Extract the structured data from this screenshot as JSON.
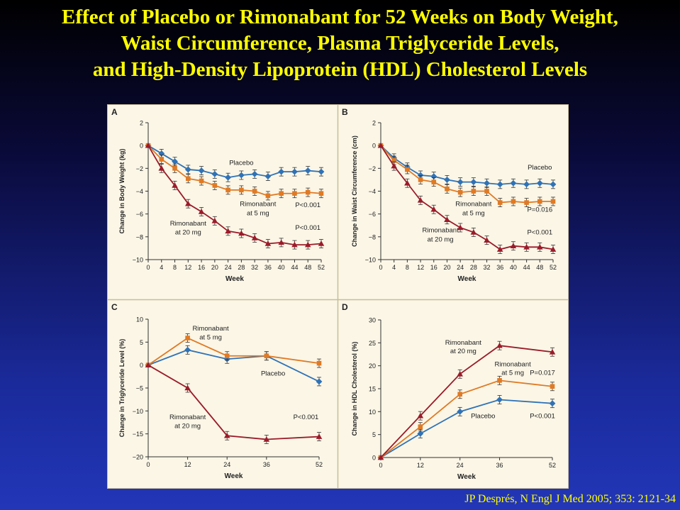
{
  "title_lines": [
    "Effect of Placebo or Rimonabant for 52 Weeks on Body Weight,",
    "Waist Circumference, Plasma Triglyceride Levels,",
    "and High-Density Lipoprotein (HDL) Cholesterol Levels"
  ],
  "citation": "JP Després, N Engl J Med 2005; 353: 2121-34",
  "colors": {
    "placebo": "#2f72b6",
    "rim5": "#e07a24",
    "rim20": "#9b1b2a",
    "title": "#ffff00"
  },
  "chart_data": [
    {
      "panel": "A",
      "type": "line",
      "ylabel": "Change in Body Weight (kg)",
      "xlabel": "Week",
      "ylim": [
        -10,
        2
      ],
      "yticks": [
        2,
        0,
        -2,
        -4,
        -6,
        -8,
        -10
      ],
      "xlim": [
        0,
        52
      ],
      "xticks": [
        0,
        4,
        8,
        12,
        16,
        20,
        24,
        28,
        32,
        36,
        40,
        44,
        48,
        52
      ],
      "x": [
        0,
        4,
        8,
        12,
        16,
        20,
        24,
        28,
        32,
        36,
        40,
        44,
        48,
        52
      ],
      "series": [
        {
          "name": "Placebo",
          "key": "placebo",
          "marker": "diamond",
          "values": [
            0,
            -0.7,
            -1.4,
            -2.1,
            -2.2,
            -2.5,
            -2.8,
            -2.6,
            -2.5,
            -2.7,
            -2.3,
            -2.3,
            -2.2,
            -2.3
          ]
        },
        {
          "name": "Rimonabant at 5 mg",
          "key": "rim5",
          "marker": "square",
          "values": [
            0,
            -1.2,
            -2.0,
            -2.9,
            -3.1,
            -3.5,
            -3.9,
            -3.9,
            -4.0,
            -4.4,
            -4.2,
            -4.2,
            -4.1,
            -4.2
          ]
        },
        {
          "name": "Rimonabant at 20 mg",
          "key": "rim20",
          "marker": "triangle",
          "values": [
            0,
            -2.0,
            -3.5,
            -5.1,
            -5.8,
            -6.6,
            -7.5,
            -7.7,
            -8.1,
            -8.6,
            -8.5,
            -8.7,
            -8.7,
            -8.6
          ]
        }
      ],
      "annotations": [
        {
          "text": "Placebo",
          "x": 28,
          "y": -1.7
        },
        {
          "text": "Rimonabant",
          "x": 33,
          "y": -5.3
        },
        {
          "text": "at 5 mg",
          "x": 33,
          "y": -6.1
        },
        {
          "text": "P<0.001",
          "x": 48,
          "y": -5.4
        },
        {
          "text": "Rimonabant",
          "x": 12,
          "y": -7.0
        },
        {
          "text": "at 20 mg",
          "x": 12,
          "y": -7.8
        },
        {
          "text": "P<0.001",
          "x": 48,
          "y": -7.4
        }
      ]
    },
    {
      "panel": "B",
      "type": "line",
      "ylabel": "Change in Waist Circumference (cm)",
      "xlabel": "Week",
      "ylim": [
        -10,
        2
      ],
      "yticks": [
        2,
        0,
        -2,
        -4,
        -6,
        -8,
        -10
      ],
      "xlim": [
        0,
        52
      ],
      "xticks": [
        0,
        4,
        8,
        12,
        16,
        20,
        24,
        28,
        32,
        36,
        40,
        44,
        48,
        52
      ],
      "x": [
        0,
        4,
        8,
        12,
        16,
        20,
        24,
        28,
        32,
        36,
        40,
        44,
        48,
        52
      ],
      "series": [
        {
          "name": "Placebo",
          "key": "placebo",
          "marker": "diamond",
          "values": [
            0,
            -1.1,
            -1.9,
            -2.6,
            -2.7,
            -3.0,
            -3.2,
            -3.2,
            -3.3,
            -3.4,
            -3.3,
            -3.4,
            -3.3,
            -3.4
          ]
        },
        {
          "name": "Rimonabant at 5 mg",
          "key": "rim5",
          "marker": "square",
          "values": [
            0,
            -1.3,
            -2.1,
            -3.0,
            -3.2,
            -3.8,
            -4.1,
            -4.0,
            -4.0,
            -5.0,
            -4.9,
            -5.0,
            -4.9,
            -4.9
          ]
        },
        {
          "name": "Rimonabant at 20 mg",
          "key": "rim20",
          "marker": "triangle",
          "values": [
            0,
            -1.8,
            -3.3,
            -4.8,
            -5.6,
            -6.5,
            -7.2,
            -7.6,
            -8.3,
            -9.1,
            -8.8,
            -8.9,
            -8.9,
            -9.1
          ]
        }
      ],
      "annotations": [
        {
          "text": "Placebo",
          "x": 48,
          "y": -2.1
        },
        {
          "text": "Rimonabant",
          "x": 28,
          "y": -5.3
        },
        {
          "text": "at 5 mg",
          "x": 28,
          "y": -6.1
        },
        {
          "text": "P=0.016",
          "x": 48,
          "y": -5.8
        },
        {
          "text": "Rimonabant",
          "x": 18,
          "y": -7.6
        },
        {
          "text": "at 20 mg",
          "x": 18,
          "y": -8.4
        },
        {
          "text": "P<0.001",
          "x": 48,
          "y": -7.8
        }
      ]
    },
    {
      "panel": "C",
      "type": "line",
      "ylabel": "Change in Triglyceride Level (%)",
      "xlabel": "Week",
      "ylim": [
        -20,
        10
      ],
      "yticks": [
        10,
        5,
        0,
        -5,
        -10,
        -15,
        -20
      ],
      "xlim": [
        0,
        52
      ],
      "xticks": [
        0,
        12,
        24,
        36,
        52
      ],
      "x": [
        0,
        12,
        24,
        36,
        52
      ],
      "series": [
        {
          "name": "Placebo",
          "key": "placebo",
          "marker": "diamond",
          "values": [
            0,
            3.3,
            1.3,
            2.0,
            -3.6
          ]
        },
        {
          "name": "Rimonabant at 5 mg",
          "key": "rim5",
          "marker": "square",
          "values": [
            0,
            5.9,
            2.0,
            2.0,
            0.4
          ]
        },
        {
          "name": "Rimonabant at 20 mg",
          "key": "rim20",
          "marker": "triangle",
          "values": [
            0,
            -5.0,
            -15.4,
            -16.2,
            -15.6
          ]
        }
      ],
      "annotations": [
        {
          "text": "Rimonabant",
          "x": 19,
          "y": 7.5
        },
        {
          "text": "at 5 mg",
          "x": 19,
          "y": 5.6
        },
        {
          "text": "Placebo",
          "x": 38,
          "y": -2.3
        },
        {
          "text": "Rimonabant",
          "x": 12,
          "y": -11.8
        },
        {
          "text": "at 20 mg",
          "x": 12,
          "y": -13.7
        },
        {
          "text": "P<0.001",
          "x": 48,
          "y": -11.8
        }
      ]
    },
    {
      "panel": "D",
      "type": "line",
      "ylabel": "Change in HDL Cholesterol (%)",
      "xlabel": "Week",
      "ylim": [
        0,
        30
      ],
      "yticks": [
        30,
        25,
        20,
        15,
        10,
        5,
        0
      ],
      "xlim": [
        0,
        52
      ],
      "xticks": [
        0,
        12,
        24,
        36,
        52
      ],
      "x": [
        0,
        12,
        24,
        36,
        52
      ],
      "series": [
        {
          "name": "Placebo",
          "key": "placebo",
          "marker": "diamond",
          "values": [
            0,
            5.2,
            10.0,
            12.6,
            11.8
          ]
        },
        {
          "name": "Rimonabant at 5 mg",
          "key": "rim5",
          "marker": "square",
          "values": [
            0,
            6.7,
            13.8,
            16.8,
            15.5
          ]
        },
        {
          "name": "Rimonabant at 20 mg",
          "key": "rim20",
          "marker": "triangle",
          "values": [
            0,
            9.1,
            18.2,
            24.4,
            23.0
          ]
        }
      ],
      "annotations": [
        {
          "text": "Rimonabant",
          "x": 25,
          "y": 24.6
        },
        {
          "text": "at 20 mg",
          "x": 25,
          "y": 22.7
        },
        {
          "text": "Rimonabant",
          "x": 40,
          "y": 19.9
        },
        {
          "text": "at 5 mg",
          "x": 40,
          "y": 18.0
        },
        {
          "text": "P=0.017",
          "x": 49,
          "y": 18.0
        },
        {
          "text": "Placebo",
          "x": 31,
          "y": 8.6
        },
        {
          "text": "P<0.001",
          "x": 49,
          "y": 8.6
        }
      ]
    }
  ]
}
